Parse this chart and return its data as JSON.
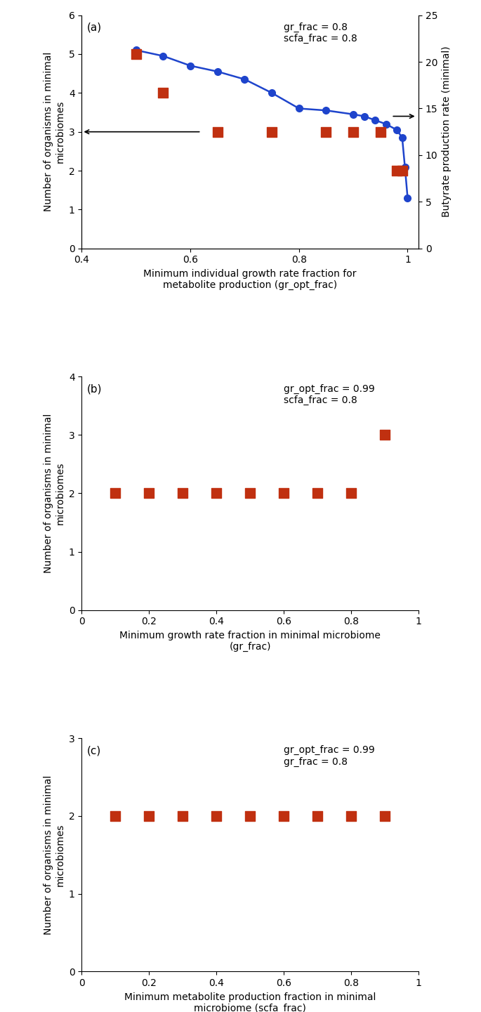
{
  "panel_a": {
    "blue_x": [
      0.5,
      0.55,
      0.6,
      0.65,
      0.7,
      0.75,
      0.8,
      0.85,
      0.9,
      0.92,
      0.94,
      0.96,
      0.98,
      0.99,
      0.995,
      1.0
    ],
    "blue_y": [
      5.1,
      4.95,
      4.7,
      4.55,
      4.35,
      4.0,
      3.6,
      3.55,
      3.45,
      3.4,
      3.3,
      3.2,
      3.05,
      2.85,
      2.1,
      1.3
    ],
    "red_x": [
      0.5,
      0.55,
      0.65,
      0.75,
      0.85,
      0.9,
      0.95,
      0.98,
      0.99
    ],
    "red_y": [
      5.0,
      4.0,
      3.0,
      3.0,
      3.0,
      3.0,
      3.0,
      2.0,
      2.0
    ],
    "xlim": [
      0.4,
      1.02
    ],
    "ylim_left": [
      0,
      6
    ],
    "ylim_right": [
      0,
      25
    ],
    "xlabel": "Minimum individual growth rate fraction for\nmetabolite production (gr_opt_frac)",
    "ylabel_left": "Number of organisms in minimal\nmicrobiomes",
    "ylabel_right": "Butyrate production rate (minimal)",
    "annotation": "gr_frac = 0.8\nscfa_frac = 0.8",
    "label": "(a)",
    "xtick_vals": [
      0.4,
      0.6,
      0.8,
      1.0
    ],
    "xtick_labels": [
      "0.4",
      "0.6",
      "0.8",
      "1"
    ],
    "yticks_left": [
      0,
      1,
      2,
      3,
      4,
      5,
      6
    ],
    "yticks_right": [
      0,
      5,
      10,
      15,
      20,
      25
    ]
  },
  "panel_b": {
    "red_x": [
      0.1,
      0.2,
      0.3,
      0.4,
      0.5,
      0.6,
      0.7,
      0.8,
      0.9
    ],
    "red_y": [
      2,
      2,
      2,
      2,
      2,
      2,
      2,
      2,
      3
    ],
    "xlim": [
      0,
      1
    ],
    "ylim": [
      0,
      4
    ],
    "xlabel": "Minimum growth rate fraction in minimal microbiome\n(gr_frac)",
    "ylabel": "Number of organisms in minimal\nmicrobiomes",
    "annotation": "gr_opt_frac = 0.99\nscfa_frac = 0.8",
    "label": "(b)",
    "xtick_vals": [
      0,
      0.2,
      0.4,
      0.6,
      0.8,
      1.0
    ],
    "xtick_labels": [
      "0",
      "0.2",
      "0.4",
      "0.6",
      "0.8",
      "1"
    ],
    "yticks": [
      0,
      1,
      2,
      3,
      4
    ]
  },
  "panel_c": {
    "red_x": [
      0.1,
      0.2,
      0.3,
      0.4,
      0.5,
      0.6,
      0.7,
      0.8,
      0.9
    ],
    "red_y": [
      2,
      2,
      2,
      2,
      2,
      2,
      2,
      2,
      2
    ],
    "xlim": [
      0,
      1
    ],
    "ylim": [
      0,
      3
    ],
    "xlabel": "Minimum metabolite production fraction in minimal\nmicrobiome (scfa_frac)",
    "ylabel": "Number of organisms in minimal\nmicrobiomes",
    "annotation": "gr_opt_frac = 0.99\ngr_frac = 0.8",
    "label": "(c)",
    "xtick_vals": [
      0,
      0.2,
      0.4,
      0.6,
      0.8,
      1.0
    ],
    "xtick_labels": [
      "0",
      "0.2",
      "0.4",
      "0.6",
      "0.8",
      "1"
    ],
    "yticks": [
      0,
      1,
      2,
      3
    ]
  },
  "colors": {
    "blue": "#1E44CC",
    "red": "#C03010",
    "background": "#FFFFFF"
  },
  "marker_size": 7,
  "square_size": 90,
  "line_width": 1.8,
  "font_size": 10,
  "tick_font_size": 10,
  "annot_font_size": 10
}
